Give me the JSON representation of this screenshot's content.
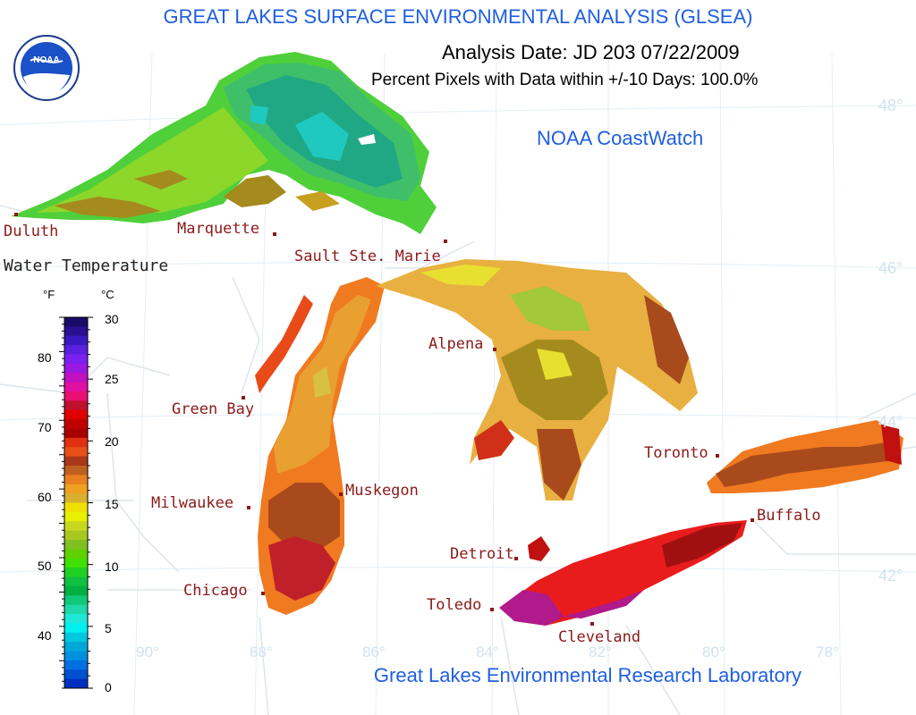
{
  "header": {
    "title": "GREAT LAKES SURFACE ENVIRONMENTAL ANALYSIS (GLSEA)",
    "analysis_date": "Analysis Date:  JD 203 07/22/2009",
    "percent_pixels": "Percent Pixels with Data within +/-10 Days: 100.0%",
    "coastwatch": "NOAA CoastWatch",
    "lab": "Great Lakes Environmental Research Laboratory"
  },
  "logo": {
    "icon": "noaa-logo-icon",
    "text": "NOAA"
  },
  "legend": {
    "title": "Water Temperature",
    "unit_f": "°F",
    "unit_c": "°C",
    "fahrenheit_ticks": [
      "80",
      "70",
      "60",
      "50",
      "40"
    ],
    "celsius_ticks": [
      "30",
      "25",
      "20",
      "15",
      "10",
      "5",
      "0"
    ]
  },
  "cities": [
    {
      "name": "Duluth"
    },
    {
      "name": "Marquette"
    },
    {
      "name": "Sault Ste. Marie"
    },
    {
      "name": "Green Bay"
    },
    {
      "name": "Alpena"
    },
    {
      "name": "Milwaukee"
    },
    {
      "name": "Muskegon"
    },
    {
      "name": "Chicago"
    },
    {
      "name": "Detroit"
    },
    {
      "name": "Toledo"
    },
    {
      "name": "Cleveland"
    },
    {
      "name": "Toronto"
    },
    {
      "name": "Buffalo"
    }
  ],
  "latitudes": [
    "48°",
    "46°",
    "44°",
    "42°"
  ],
  "longitudes": [
    "90°",
    "88°",
    "86°",
    "84°",
    "82°",
    "80°",
    "78°"
  ]
}
